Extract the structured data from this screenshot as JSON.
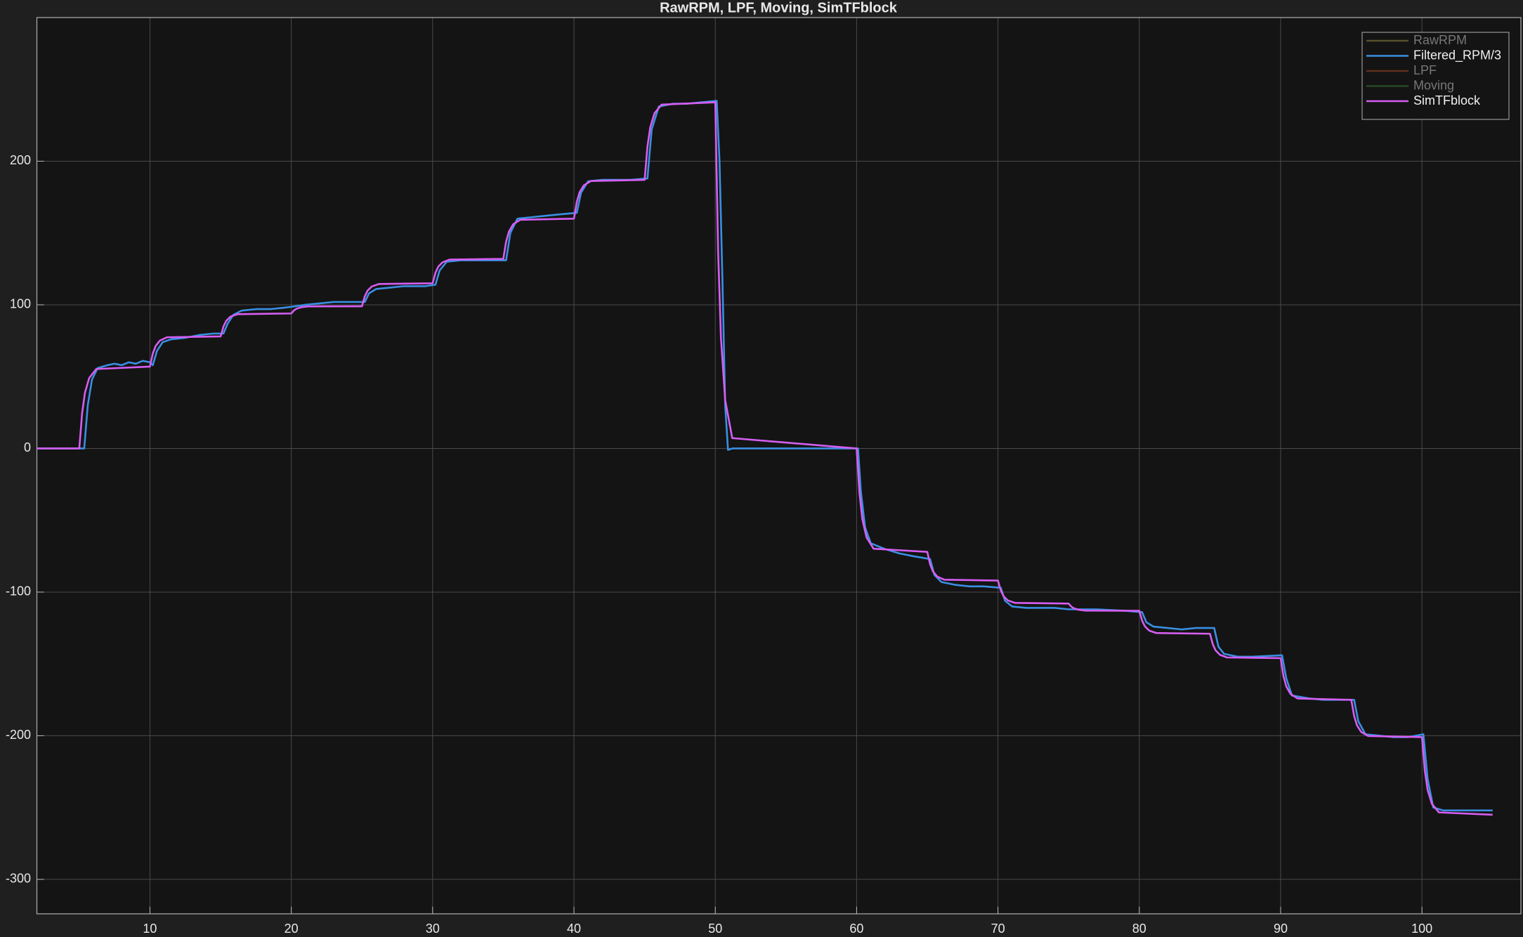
{
  "chart_data": {
    "type": "line",
    "title": "RawRPM, LPF, Moving, SimTFblock",
    "xlim": [
      2,
      107
    ],
    "ylim": [
      -324,
      300
    ],
    "xticks": [
      10,
      20,
      30,
      40,
      50,
      60,
      70,
      80,
      90,
      100
    ],
    "yticks": [
      -300,
      -200,
      -100,
      0,
      100,
      200
    ],
    "grid": true,
    "legend_position": "upper-right",
    "series": [
      {
        "name": "RawRPM",
        "color": "#6e6436",
        "visible": false,
        "x": [],
        "values": []
      },
      {
        "name": "Filtered_RPM/3",
        "color": "#3a8fe3",
        "visible": true,
        "x": [
          2,
          5.2,
          5.35,
          5.6,
          5.9,
          6.3,
          7,
          7.5,
          8,
          8.5,
          9,
          9.5,
          10,
          10.2,
          10.5,
          10.9,
          11.5,
          12.5,
          13.5,
          14.5,
          15.2,
          15.5,
          15.9,
          16.5,
          17.5,
          18.5,
          19.5,
          20.3,
          21,
          22,
          23,
          24,
          25.2,
          25.5,
          26,
          27,
          28,
          29.5,
          30.2,
          30.5,
          31,
          32,
          33,
          34,
          35.2,
          35.5,
          36,
          37,
          38,
          39,
          40.2,
          40.5,
          41,
          42,
          43,
          44,
          45.2,
          45.5,
          46,
          47,
          48,
          49,
          50.1,
          50.3,
          50.5,
          50.7,
          50.9,
          51.2,
          60.1,
          60.3,
          60.6,
          61,
          62,
          63,
          64,
          65.2,
          65.5,
          66,
          67,
          68,
          69,
          70.2,
          70.5,
          71,
          72,
          73,
          74,
          75,
          77,
          79,
          80.2,
          80.5,
          81,
          82,
          83,
          84,
          85.3,
          85.6,
          86,
          87,
          88,
          90.1,
          90.4,
          90.8,
          92,
          93,
          95.2,
          95.5,
          96,
          97,
          98,
          99,
          100.1,
          100.4,
          100.8,
          101.5,
          103,
          105
        ],
        "values": [
          0,
          0,
          0,
          30,
          48,
          56,
          58,
          59,
          58,
          60,
          59,
          61,
          60,
          58,
          68,
          74,
          76,
          77,
          79,
          80,
          80,
          87,
          93,
          96,
          97,
          97,
          98,
          99,
          100,
          101,
          102,
          102,
          102,
          108,
          111,
          112,
          113,
          113,
          114,
          124,
          130,
          131,
          131,
          131,
          131,
          150,
          160,
          161,
          162,
          163,
          164,
          178,
          186,
          187,
          187,
          187,
          188,
          222,
          238,
          240,
          240,
          241,
          242,
          200,
          120,
          30,
          -1,
          0,
          0,
          -30,
          -55,
          -66,
          -70,
          -73,
          -75,
          -77,
          -88,
          -93,
          -95,
          -96,
          -96,
          -97,
          -106,
          -110,
          -111,
          -111,
          -111,
          -112,
          -112,
          -113,
          -114,
          -121,
          -124,
          -125,
          -126,
          -125,
          -125,
          -138,
          -143,
          -145,
          -145,
          -144,
          -160,
          -172,
          -174,
          -175,
          -175,
          -190,
          -199,
          -200,
          -201,
          -201,
          -199,
          -230,
          -250,
          -252,
          -252,
          -252
        ]
      },
      {
        "name": "LPF",
        "color": "#7a3a22",
        "visible": false,
        "x": [],
        "values": []
      },
      {
        "name": "Moving",
        "color": "#2f5a2a",
        "visible": false,
        "x": [],
        "values": []
      },
      {
        "name": "SimTFblock",
        "color": "#d65ef2",
        "visible": true,
        "x": [
          2,
          5,
          5.2,
          5.4,
          5.7,
          6.2,
          10,
          10.2,
          10.4,
          10.7,
          11.2,
          15,
          15.2,
          15.4,
          15.7,
          16.2,
          20,
          20.2,
          20.4,
          20.7,
          21.2,
          25,
          25.2,
          25.4,
          25.7,
          26.2,
          30,
          30.2,
          30.4,
          30.7,
          31.2,
          35,
          35.2,
          35.4,
          35.7,
          36.2,
          40,
          40.2,
          40.4,
          40.7,
          41.2,
          45,
          45.2,
          45.4,
          45.7,
          46.2,
          50,
          50.2,
          50.4,
          50.7,
          51.2,
          60,
          60.2,
          60.4,
          60.7,
          61.2,
          65,
          65.2,
          65.4,
          65.7,
          66.2,
          70,
          70.2,
          70.4,
          70.7,
          71.2,
          75,
          75.2,
          75.4,
          75.7,
          76.2,
          80,
          80.2,
          80.4,
          80.7,
          81.2,
          85,
          85.2,
          85.4,
          85.7,
          86.2,
          90,
          90.2,
          90.4,
          90.7,
          91.2,
          95,
          95.2,
          95.4,
          95.7,
          96.2,
          100,
          100.2,
          100.4,
          100.7,
          101.2,
          105
        ],
        "values": [
          0,
          0,
          24.5,
          38.8,
          49.0,
          55.3,
          57,
          66.0,
          71.3,
          75.1,
          77.4,
          78,
          84.9,
          88.9,
          91.8,
          93.5,
          94,
          96.2,
          97.4,
          98.3,
          98.9,
          99,
          105.9,
          109.9,
          112.8,
          114.5,
          115,
          122.3,
          126.6,
          129.6,
          131.5,
          132,
          144.0,
          151.0,
          156.1,
          159.2,
          160,
          171.6,
          178.4,
          183.2,
          186.2,
          187,
          210.2,
          223.7,
          233.4,
          239.4,
          241,
          137.4,
          77.1,
          33.7,
          7.2,
          0,
          -31.0,
          -49.0,
          -61.9,
          -69.8,
          -72,
          -80.6,
          -85.6,
          -89.2,
          -91.4,
          -92,
          -98.9,
          -102.9,
          -105.8,
          -107.5,
          -108,
          -110.2,
          -111.4,
          -112.3,
          -112.9,
          -113,
          -119.9,
          -123.9,
          -126.8,
          -128.5,
          -129,
          -136.3,
          -140.6,
          -143.6,
          -145.5,
          -146,
          -158.5,
          -165.7,
          -170.9,
          -174.1,
          -175,
          -186.2,
          -192.7,
          -197.4,
          -200.2,
          -201,
          -224.2,
          -237.7,
          -247.4,
          -253.4,
          -255
        ]
      }
    ]
  }
}
